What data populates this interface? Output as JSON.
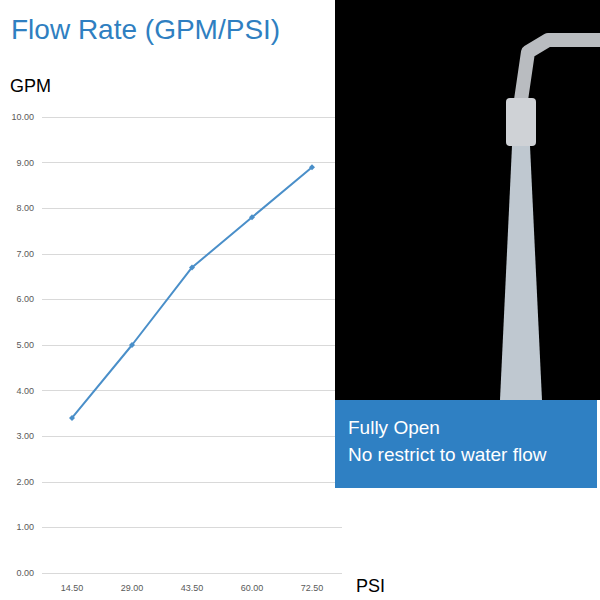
{
  "chart_data": {
    "type": "line",
    "title": "Flow Rate (GPM/PSI)",
    "x_label": "PSI",
    "y_label": "GPM",
    "categories": [
      "14.50",
      "29.00",
      "43.50",
      "60.00",
      "72.50"
    ],
    "values": [
      3.4,
      5.0,
      6.7,
      7.8,
      8.9
    ],
    "color": "#4a8fc9",
    "marker": "diamond",
    "ylim": [
      0,
      10
    ],
    "yticks": [
      {
        "value": 0,
        "label": "0.00"
      },
      {
        "value": 1,
        "label": "1.00"
      },
      {
        "value": 2,
        "label": "2.00"
      },
      {
        "value": 3,
        "label": "3.00"
      },
      {
        "value": 4,
        "label": "4.00"
      },
      {
        "value": 5,
        "label": "5.00"
      },
      {
        "value": 6,
        "label": "6.00"
      },
      {
        "value": 7,
        "label": "7.00"
      },
      {
        "value": 8,
        "label": "8.00"
      },
      {
        "value": 9,
        "label": "9.00"
      },
      {
        "value": 10,
        "label": "10.00"
      }
    ],
    "grid": true,
    "annotations": [
      "Fully Open",
      "No restrict to water flow"
    ]
  }
}
